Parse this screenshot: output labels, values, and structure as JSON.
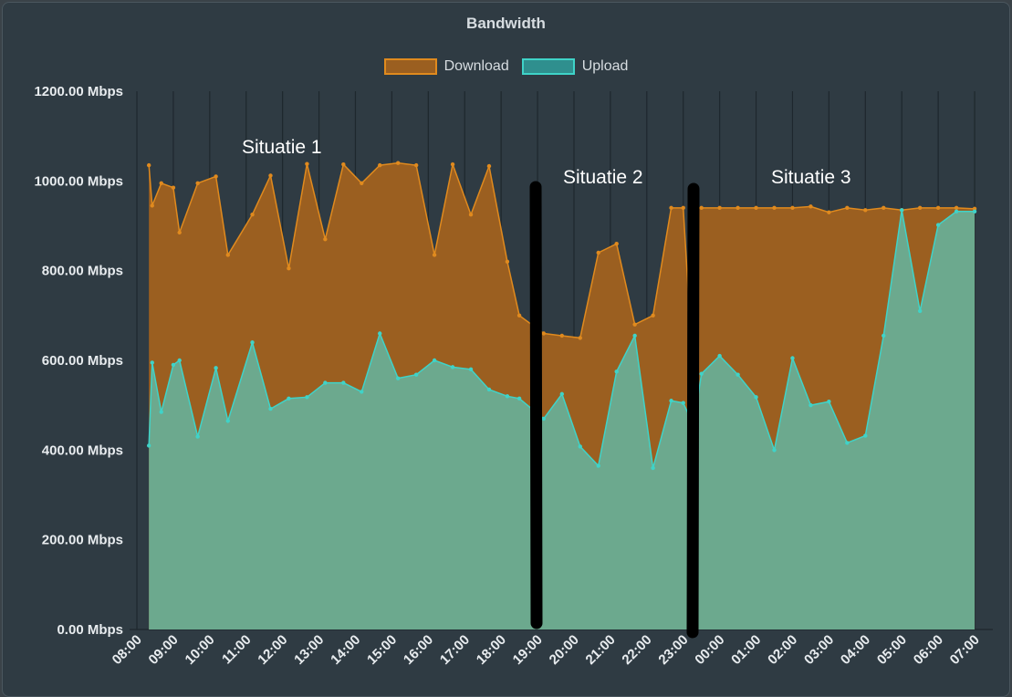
{
  "chart_data": {
    "type": "area",
    "title": "Bandwidth",
    "ylim": [
      0,
      1200
    ],
    "y_ticks": [
      "0.00 Mbps",
      "200.00 Mbps",
      "400.00 Mbps",
      "600.00 Mbps",
      "800.00 Mbps",
      "1000.00 Mbps",
      "1200.00 Mbps"
    ],
    "x_ticks": [
      "08:00",
      "09:00",
      "10:00",
      "11:00",
      "12:00",
      "13:00",
      "14:00",
      "15:00",
      "16:00",
      "17:00",
      "18:00",
      "19:00",
      "20:00",
      "21:00",
      "22:00",
      "23:00",
      "00:00",
      "01:00",
      "02:00",
      "03:00",
      "04:00",
      "05:00",
      "06:00",
      "07:00"
    ],
    "x": [
      8.33,
      8.42,
      8.67,
      9.0,
      9.17,
      9.67,
      10.17,
      10.5,
      11.17,
      11.67,
      12.17,
      12.67,
      13.17,
      13.67,
      14.17,
      14.67,
      15.17,
      15.67,
      16.17,
      16.67,
      17.17,
      17.67,
      18.17,
      18.5,
      19.17,
      19.67,
      20.17,
      20.67,
      21.17,
      21.67,
      22.17,
      22.67,
      23.0,
      23.17,
      23.33,
      23.5,
      24.0,
      24.5,
      25.0,
      25.5,
      26.0,
      26.5,
      27.0,
      27.5,
      28.0,
      28.5,
      29.0,
      29.5,
      30.0,
      30.5,
      31.0
    ],
    "grid": true,
    "legend_position": "top",
    "series": [
      {
        "name": "Download",
        "color": "#e08a1e",
        "fill": "#9b5f20",
        "values": [
          1035,
          945,
          995,
          985,
          885,
          995,
          1010,
          835,
          925,
          1012,
          805,
          1038,
          870,
          1037,
          995,
          1035,
          1040,
          1035,
          835,
          1037,
          925,
          1033,
          820,
          700,
          660,
          655,
          650,
          840,
          860,
          680,
          700,
          940,
          940,
          710,
          940,
          940,
          940,
          940,
          940,
          940,
          940,
          943,
          930,
          940,
          935,
          940,
          935,
          940,
          940,
          940,
          938
        ]
      },
      {
        "name": "Upload",
        "color": "#3fd3c8",
        "fill": "#6ca98e",
        "values": [
          410,
          595,
          485,
          590,
          600,
          430,
          583,
          465,
          640,
          492,
          515,
          518,
          550,
          550,
          530,
          660,
          560,
          568,
          600,
          585,
          580,
          535,
          520,
          515,
          470,
          525,
          408,
          365,
          575,
          655,
          360,
          510,
          505,
          475,
          480,
          570,
          610,
          568,
          518,
          400,
          605,
          500,
          508,
          416,
          432,
          655,
          935,
          710,
          902,
          932,
          932
        ]
      }
    ],
    "annotations": [
      "Situatie 1",
      "Situatie 2",
      "Situatie 3"
    ]
  }
}
